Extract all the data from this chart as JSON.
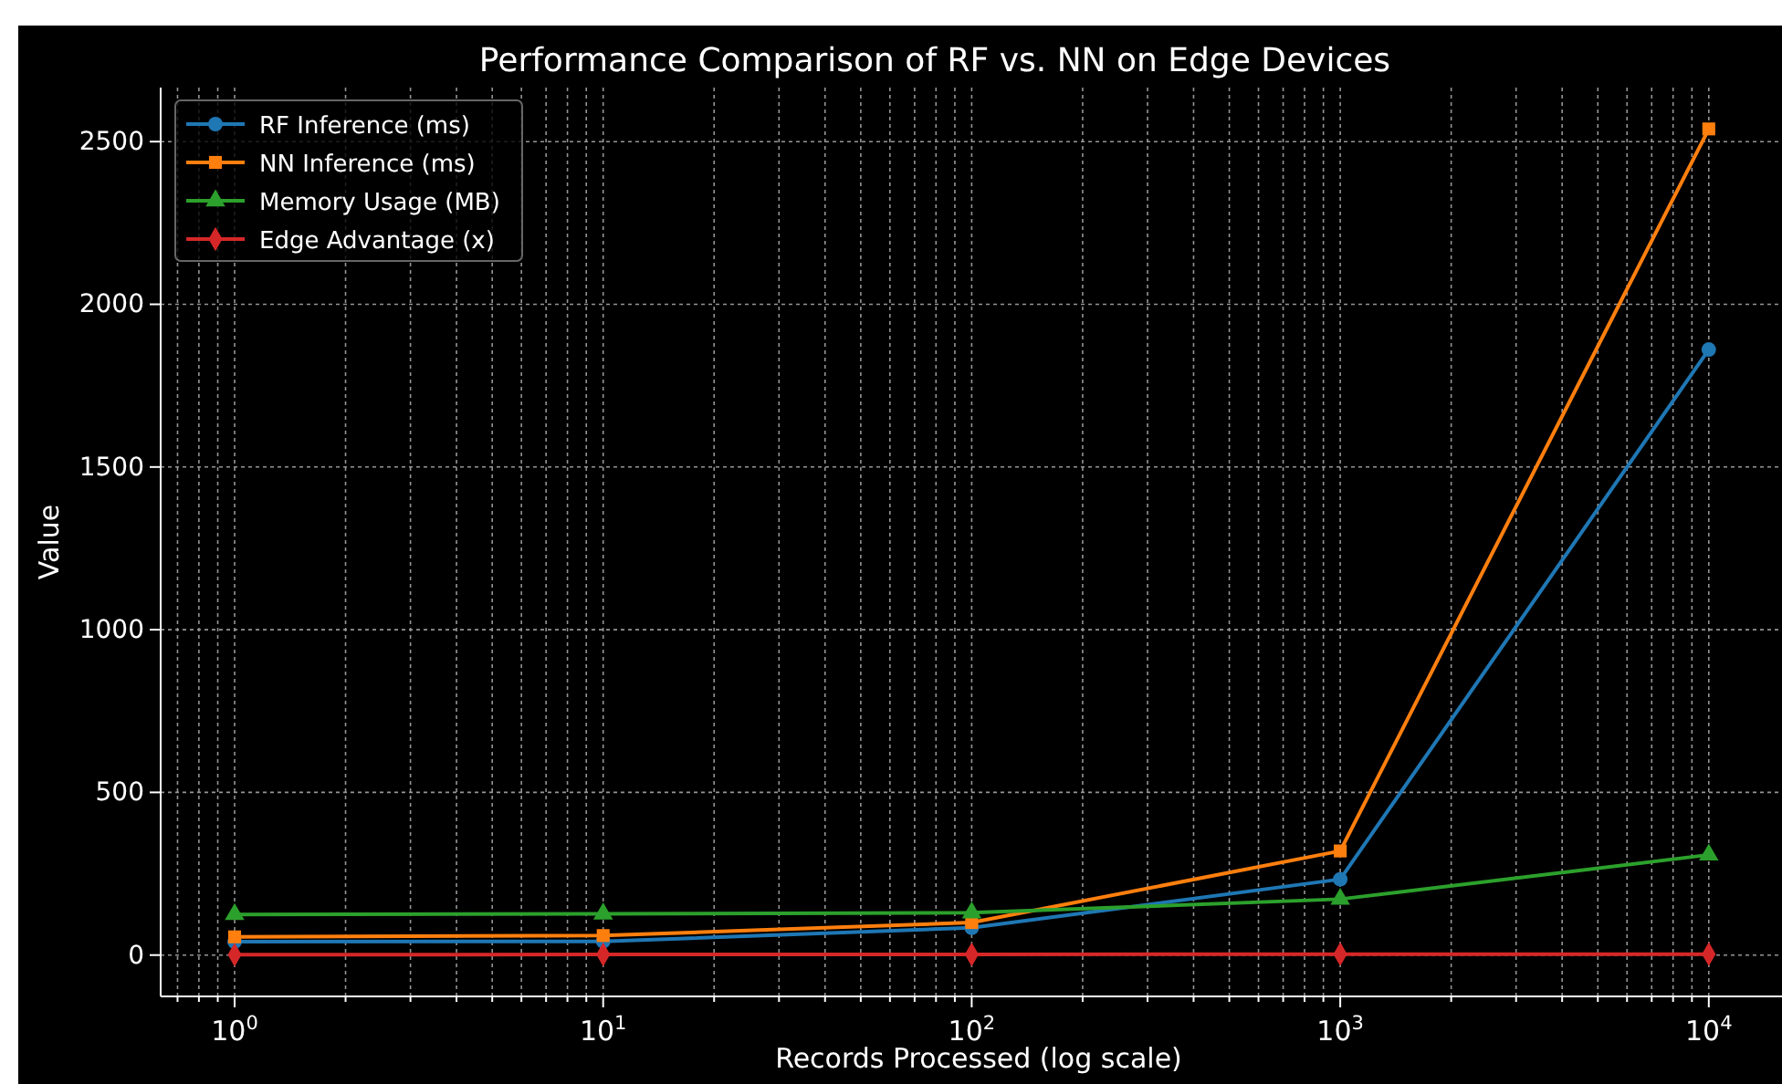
{
  "chart_data": {
    "type": "line",
    "title": "Performance Comparison of RF vs. NN on Edge Devices",
    "xlabel": "Records Processed (log scale)",
    "ylabel": "Value",
    "x": [
      1,
      10,
      100,
      1000,
      10000
    ],
    "series": [
      {
        "name": "RF Inference (ms)",
        "color": "#1f77b4",
        "marker": "circle",
        "values": [
          41,
          42,
          84,
          233,
          1861
        ]
      },
      {
        "name": "NN Inference (ms)",
        "color": "#ff7f0e",
        "marker": "square",
        "values": [
          56,
          60,
          100,
          320,
          2539
        ]
      },
      {
        "name": "Memory Usage (MB)",
        "color": "#2ca02c",
        "marker": "triangle",
        "values": [
          125,
          127,
          130,
          172,
          308
        ]
      },
      {
        "name": "Edge Advantage (x)",
        "color": "#d62728",
        "marker": "diamond",
        "values": [
          1,
          2,
          2,
          3,
          3
        ]
      }
    ],
    "log": "x",
    "xlim": [
      0.63,
      15800
    ],
    "ylim": [
      -127,
      2666
    ],
    "xticks": [
      {
        "value": 0.7,
        "label": null
      },
      {
        "value": 0.8,
        "label": null
      },
      {
        "value": 0.9,
        "label": null
      },
      {
        "value": 1,
        "label": "10$^{0}$"
      },
      {
        "value": 2,
        "label": null
      },
      {
        "value": 3,
        "label": null
      },
      {
        "value": 4,
        "label": null
      },
      {
        "value": 5,
        "label": null
      },
      {
        "value": 6,
        "label": null
      },
      {
        "value": 7,
        "label": null
      },
      {
        "value": 8,
        "label": null
      },
      {
        "value": 9,
        "label": null
      },
      {
        "value": 10,
        "label": "10$^{1}$"
      },
      {
        "value": 20,
        "label": null
      },
      {
        "value": 30,
        "label": null
      },
      {
        "value": 40,
        "label": null
      },
      {
        "value": 50,
        "label": null
      },
      {
        "value": 60,
        "label": null
      },
      {
        "value": 70,
        "label": null
      },
      {
        "value": 80,
        "label": null
      },
      {
        "value": 90,
        "label": null
      },
      {
        "value": 100,
        "label": "10$^{2}$"
      },
      {
        "value": 200,
        "label": null
      },
      {
        "value": 300,
        "label": null
      },
      {
        "value": 400,
        "label": null
      },
      {
        "value": 500,
        "label": null
      },
      {
        "value": 600,
        "label": null
      },
      {
        "value": 700,
        "label": null
      },
      {
        "value": 800,
        "label": null
      },
      {
        "value": 900,
        "label": null
      },
      {
        "value": 1000,
        "label": "10$^{3}$"
      },
      {
        "value": 2000,
        "label": null
      },
      {
        "value": 3000,
        "label": null
      },
      {
        "value": 4000,
        "label": null
      },
      {
        "value": 5000,
        "label": null
      },
      {
        "value": 6000,
        "label": null
      },
      {
        "value": 7000,
        "label": null
      },
      {
        "value": 8000,
        "label": null
      },
      {
        "value": 9000,
        "label": null
      },
      {
        "value": 10000,
        "label": "10$^{4}$"
      }
    ],
    "yticks": [
      0,
      500,
      1000,
      1500,
      2000,
      2500
    ],
    "grid": true,
    "legend": "top left",
    "line_style": "solid"
  }
}
